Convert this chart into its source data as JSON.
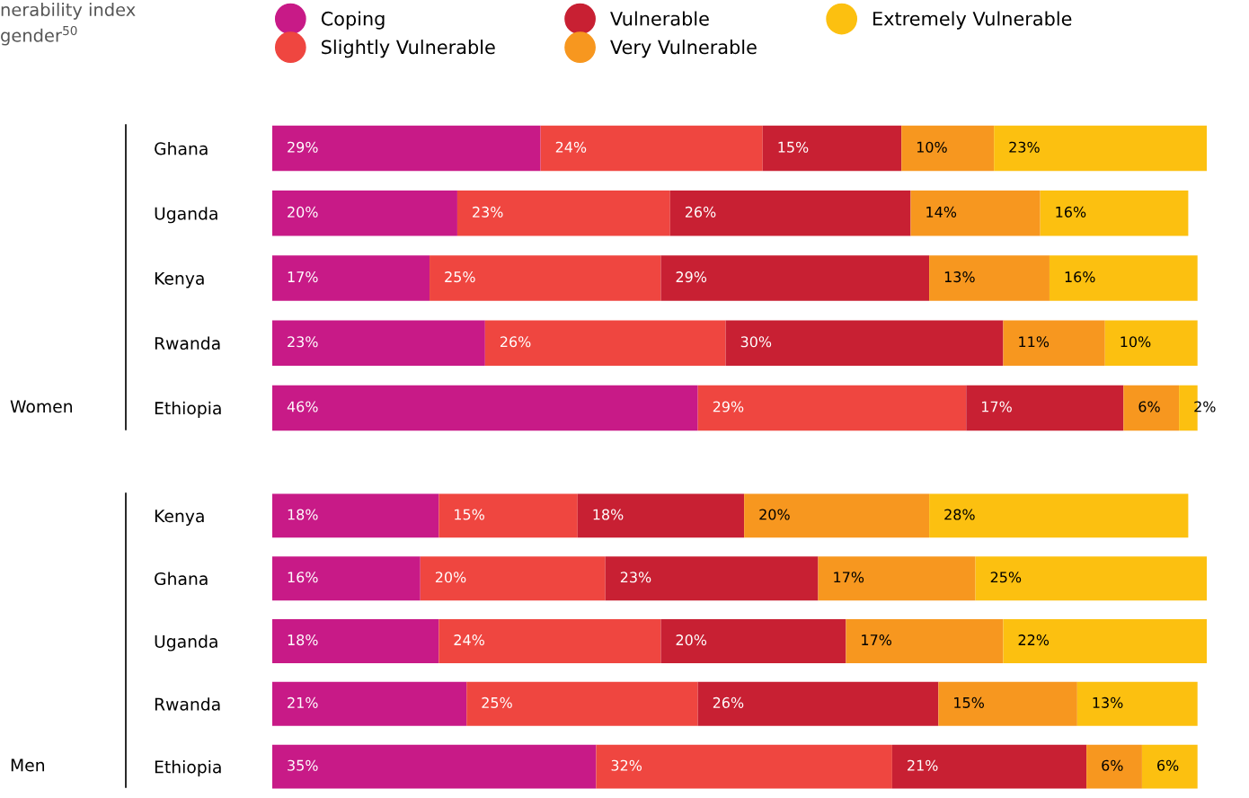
{
  "chart_data": [
    {
      "type": "bar",
      "orientation": "horizontal",
      "stacked": true,
      "title": "nerability index\ngender$^{50}$",
      "ylabel": "Women",
      "legend": "top",
      "tick_labels": "y",
      "xlim": [
        0,
        101
      ],
      "categories": [
        "Ghana",
        "Uganda",
        "Kenya",
        "Rwanda",
        "Ethiopia"
      ],
      "series": [
        {
          "name": "Coping",
          "color": "#c81a87",
          "values": [
            29,
            20,
            17,
            23,
            46
          ],
          "value_labels": [
            "29%",
            "20%",
            "17%",
            "23%",
            "46%"
          ]
        },
        {
          "name": "Slightly Vulnerable",
          "color": "#ef4640",
          "values": [
            24,
            23,
            25,
            26,
            29
          ],
          "value_labels": [
            "24%",
            "23%",
            "25%",
            "26%",
            "29%"
          ]
        },
        {
          "name": "Vulnerable",
          "color": "#c82033",
          "values": [
            15,
            26,
            29,
            30,
            17
          ],
          "value_labels": [
            "15%",
            "26%",
            "29%",
            "30%",
            "17%"
          ]
        },
        {
          "name": "Very Vulnerable",
          "color": "#f7971f",
          "values": [
            10,
            14,
            13,
            11,
            6
          ],
          "value_labels": [
            "10%",
            "14%",
            "13%",
            "11%",
            "6%"
          ]
        },
        {
          "name": "Extremely Vulnerable",
          "color": "#fcc010",
          "values": [
            23,
            16,
            16,
            10,
            2
          ],
          "value_labels": [
            "23%",
            "16%",
            "16%",
            "10%",
            "2%"
          ]
        }
      ]
    },
    {
      "type": "bar",
      "orientation": "horizontal",
      "stacked": true,
      "ylabel": "Men",
      "tick_labels": "y",
      "xlim": [
        0,
        101
      ],
      "categories": [
        "Kenya",
        "Ghana",
        "Uganda",
        "Rwanda",
        "Ethiopia"
      ],
      "series": [
        {
          "color": "#c81a87",
          "values": [
            18,
            16,
            18,
            21,
            35
          ],
          "value_labels": [
            "18%",
            "16%",
            "18%",
            "21%",
            "35%"
          ]
        },
        {
          "color": "#ef4640",
          "values": [
            15,
            20,
            24,
            25,
            32
          ],
          "value_labels": [
            "15%",
            "20%",
            "24%",
            "25%",
            "32%"
          ]
        },
        {
          "color": "#c82033",
          "values": [
            18,
            23,
            20,
            26,
            21
          ],
          "value_labels": [
            "18%",
            "23%",
            "20%",
            "26%",
            "21%"
          ]
        },
        {
          "color": "#f7971f",
          "values": [
            20,
            17,
            17,
            15,
            6
          ],
          "value_labels": [
            "20%",
            "17%",
            "17%",
            "15%",
            "6%"
          ]
        },
        {
          "color": "#fcc010",
          "values": [
            28,
            25,
            22,
            13,
            6
          ],
          "value_labels": [
            "28%",
            "25%",
            "22%",
            "13%",
            "6%"
          ]
        }
      ]
    }
  ]
}
